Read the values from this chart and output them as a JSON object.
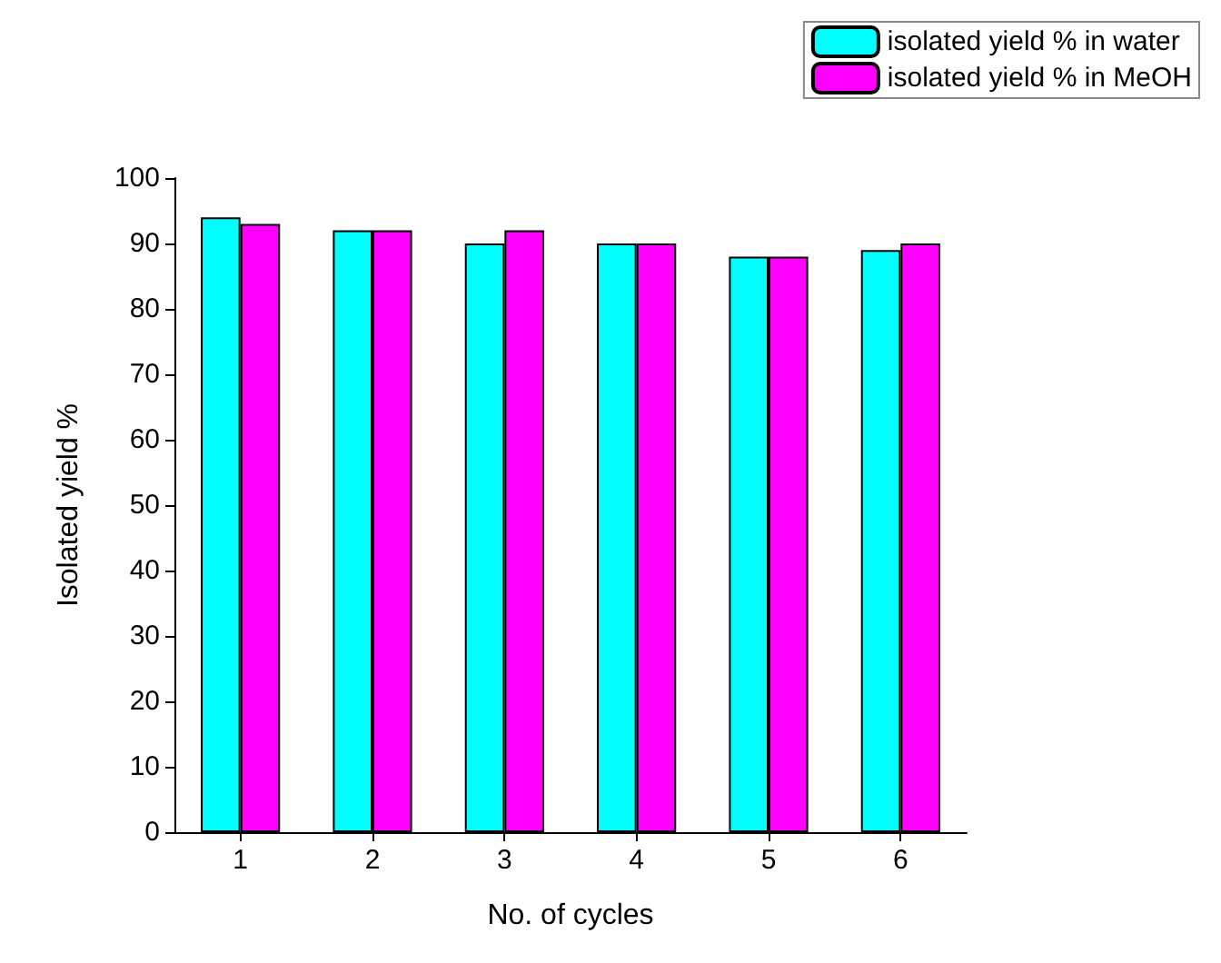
{
  "chart_data": {
    "type": "bar",
    "xlabel": "No. of cycles",
    "ylabel": "Isolated yield %",
    "categories": [
      "1",
      "2",
      "3",
      "4",
      "5",
      "6"
    ],
    "series": [
      {
        "name": "isolated yield % in water",
        "color": "#00ffff",
        "values": [
          94,
          92,
          90,
          90,
          88,
          89
        ]
      },
      {
        "name": "isolated yield % in MeOH",
        "color": "#ff00ff",
        "values": [
          93,
          92,
          92,
          90,
          88,
          90
        ]
      }
    ],
    "ylim": [
      0,
      100
    ],
    "yticks": [
      0,
      10,
      20,
      30,
      40,
      50,
      60,
      70,
      80,
      90,
      100
    ],
    "grid": false,
    "legend": "top right"
  }
}
